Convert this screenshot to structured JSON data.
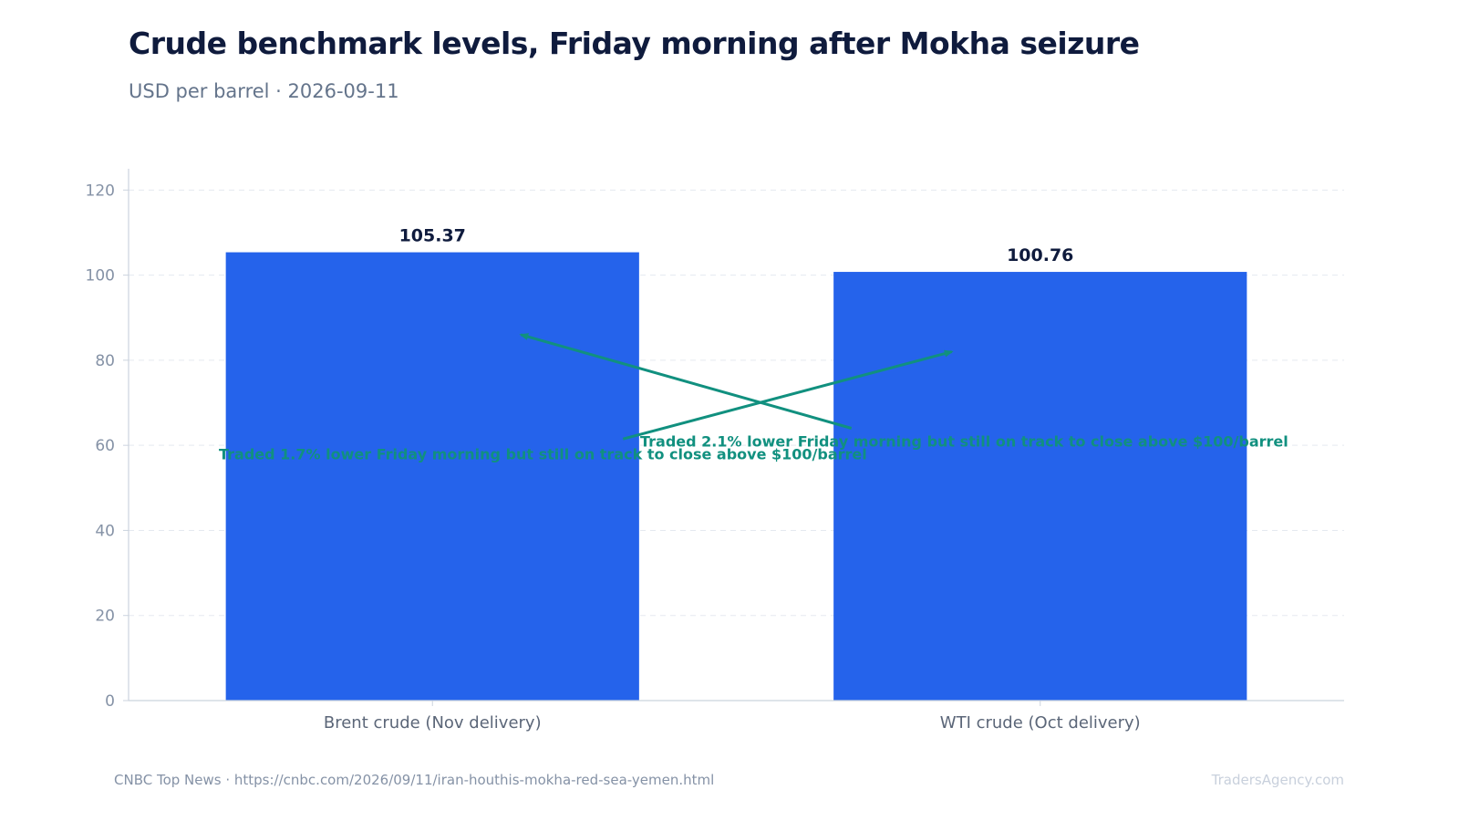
{
  "chart_data": {
    "type": "bar",
    "title": "Crude benchmark levels, Friday morning after Mokha seizure",
    "subtitle": "USD per barrel · 2026-09-11",
    "categories": [
      "Brent crude (Nov delivery)",
      "WTI crude (Oct delivery)"
    ],
    "values": [
      105.37,
      100.76
    ],
    "value_labels": [
      "105.37",
      "100.76"
    ],
    "ylim": [
      0,
      125
    ],
    "yticks": [
      0,
      20,
      40,
      60,
      80,
      100,
      120
    ],
    "grid": true,
    "bar_color": "#2563eb",
    "annotation_color": "#11907f",
    "annotations": [
      {
        "text": "Traded 1.7% lower Friday morning but still on track to close above $100/barrel",
        "target_category": 0,
        "target_value": 86,
        "text_value": 58
      },
      {
        "text": "Traded 2.1% lower Friday morning but still on track to close above $100/barrel",
        "target_category": 1,
        "target_value": 82,
        "text_value": 61
      }
    ]
  },
  "footer": {
    "source": "CNBC Top News · https://cnbc.com/2026/09/11/iran-houthis-mokha-red-sea-yemen.html",
    "brand": "TradersAgency.com"
  }
}
